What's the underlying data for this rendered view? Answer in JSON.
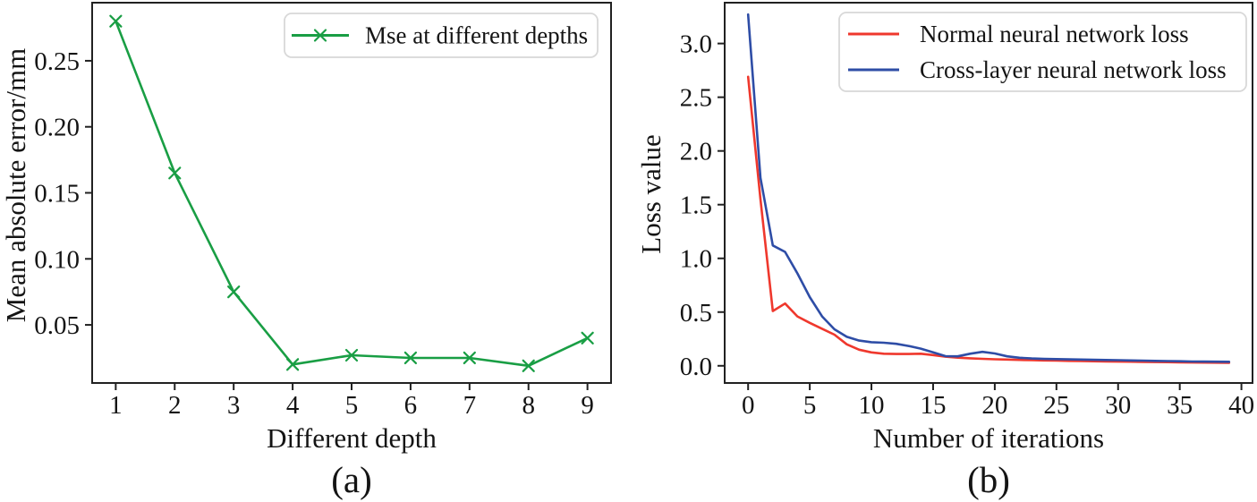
{
  "figure": {
    "background": "#ffffff",
    "captions": [
      "(a)",
      "(b)"
    ]
  },
  "style": {
    "axis_color": "#212121",
    "text_color": "#141414",
    "legend_border": "#d8d8d8",
    "legend_background": "#ffffff",
    "green": "#199e44",
    "red": "#ef382d",
    "blue": "#2e4da6"
  },
  "chart_data": [
    {
      "type": "line",
      "title": "",
      "xlabel": "Different depth",
      "ylabel": "Mean absolute error/mm",
      "x": [
        1,
        2,
        3,
        4,
        5,
        6,
        7,
        8,
        9
      ],
      "series": [
        {
          "name": "Mse at different depths",
          "color": "#199e44",
          "marker": "x",
          "values": [
            0.28,
            0.165,
            0.075,
            0.02,
            0.027,
            0.025,
            0.025,
            0.019,
            0.04
          ]
        }
      ],
      "xticks": [
        1,
        2,
        3,
        4,
        5,
        6,
        7,
        8,
        9
      ],
      "xtick_labels": [
        "1",
        "2",
        "3",
        "4",
        "5",
        "6",
        "7",
        "8",
        "9"
      ],
      "yticks": [
        0.05,
        0.1,
        0.15,
        0.2,
        0.25
      ],
      "ytick_labels": [
        "0.05",
        "0.10",
        "0.15",
        "0.20",
        "0.25"
      ],
      "xlim": [
        0.6,
        9.4
      ],
      "ylim": [
        0.006,
        0.294
      ],
      "grid": false,
      "legend_position": "upper right"
    },
    {
      "type": "line",
      "title": "",
      "xlabel": "Number of iterations",
      "ylabel": "Loss value",
      "x": [
        0,
        1,
        2,
        3,
        4,
        5,
        6,
        7,
        8,
        9,
        10,
        11,
        12,
        13,
        14,
        15,
        16,
        17,
        18,
        19,
        20,
        21,
        22,
        23,
        24,
        25,
        26,
        27,
        28,
        29,
        30,
        31,
        32,
        33,
        34,
        35,
        36,
        37,
        38,
        39
      ],
      "series": [
        {
          "name": "Normal neural network loss",
          "color": "#ef382d",
          "marker": null,
          "values": [
            2.69,
            1.55,
            0.51,
            0.58,
            0.46,
            0.4,
            0.345,
            0.29,
            0.2,
            0.15,
            0.125,
            0.112,
            0.11,
            0.11,
            0.112,
            0.1,
            0.085,
            0.076,
            0.07,
            0.065,
            0.061,
            0.058,
            0.055,
            0.052,
            0.05,
            0.048,
            0.046,
            0.044,
            0.042,
            0.041,
            0.039,
            0.038,
            0.036,
            0.035,
            0.034,
            0.032,
            0.031,
            0.03,
            0.029,
            0.028
          ]
        },
        {
          "name": "Cross-layer neural network loss",
          "color": "#2e4da6",
          "marker": null,
          "values": [
            3.27,
            1.75,
            1.12,
            1.06,
            0.86,
            0.64,
            0.46,
            0.34,
            0.27,
            0.235,
            0.22,
            0.215,
            0.205,
            0.185,
            0.16,
            0.125,
            0.09,
            0.088,
            0.112,
            0.13,
            0.115,
            0.088,
            0.075,
            0.068,
            0.064,
            0.062,
            0.06,
            0.058,
            0.056,
            0.054,
            0.052,
            0.05,
            0.048,
            0.046,
            0.044,
            0.042,
            0.04,
            0.039,
            0.038,
            0.037
          ]
        }
      ],
      "xticks": [
        0,
        5,
        10,
        15,
        20,
        25,
        30,
        35,
        40
      ],
      "xtick_labels": [
        "0",
        "5",
        "10",
        "15",
        "20",
        "25",
        "30",
        "35",
        "40"
      ],
      "yticks": [
        0.0,
        0.5,
        1.0,
        1.5,
        2.0,
        2.5,
        3.0
      ],
      "ytick_labels": [
        "0.0",
        "0.5",
        "1.0",
        "1.5",
        "2.0",
        "2.5",
        "3.0"
      ],
      "xlim": [
        -1.9,
        40.9
      ],
      "ylim": [
        -0.16,
        3.38
      ],
      "grid": false,
      "legend_position": "upper right"
    }
  ]
}
